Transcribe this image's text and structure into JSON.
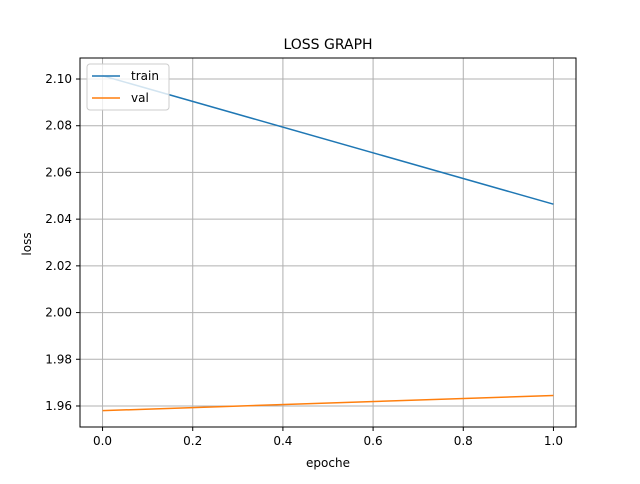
{
  "chart_data": {
    "type": "line",
    "title": "LOSS GRAPH",
    "xlabel": "epoche",
    "ylabel": "loss",
    "xlim": [
      -0.05,
      1.05
    ],
    "ylim": [
      1.951,
      2.109
    ],
    "xticks": [
      0.0,
      0.2,
      0.4,
      0.6,
      0.8,
      1.0
    ],
    "xtick_labels": [
      "0.0",
      "0.2",
      "0.4",
      "0.6",
      "0.8",
      "1.0"
    ],
    "yticks": [
      1.96,
      1.98,
      2.0,
      2.02,
      2.04,
      2.06,
      2.08,
      2.1
    ],
    "ytick_labels": [
      "1.96",
      "1.98",
      "2.00",
      "2.02",
      "2.04",
      "2.06",
      "2.08",
      "2.10"
    ],
    "grid": true,
    "legend_position": "top-left",
    "series": [
      {
        "name": "train",
        "color": "#1f77b4",
        "x": [
          0,
          1
        ],
        "y": [
          2.1014,
          2.0464
        ]
      },
      {
        "name": "val",
        "color": "#ff7f0e",
        "x": [
          0,
          1
        ],
        "y": [
          1.958,
          1.9645
        ]
      }
    ]
  }
}
